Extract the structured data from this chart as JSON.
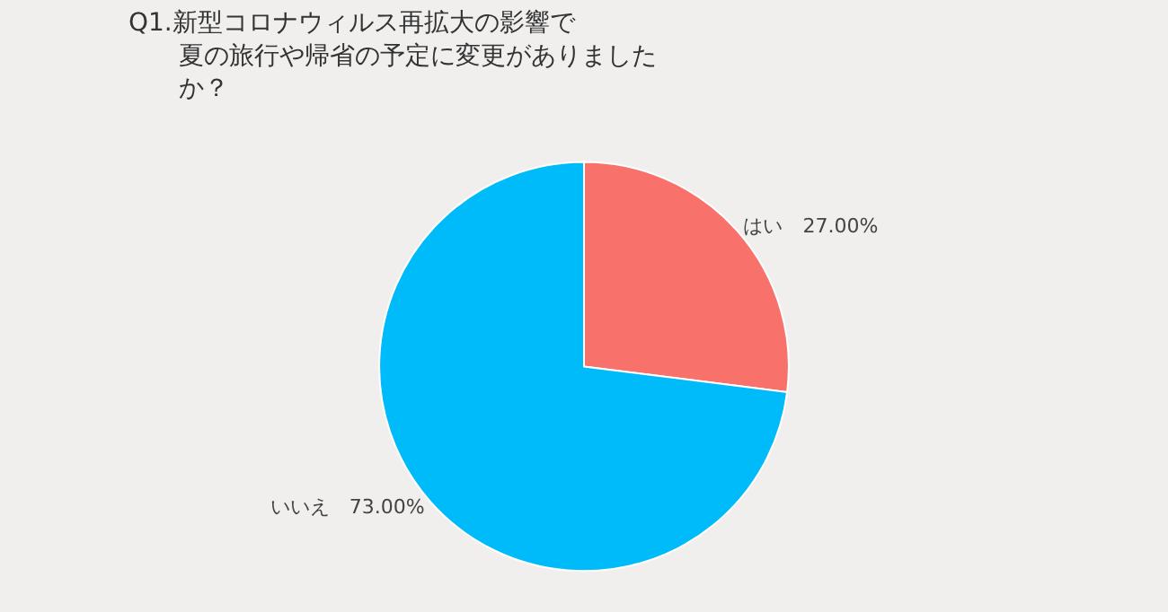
{
  "chart_data": {
    "type": "pie",
    "title": "Q1.新型コロナウィルス再拡大の影響で夏の旅行や帰省の予定に変更がありましたか？",
    "categories": [
      "はい",
      "いいえ"
    ],
    "values": [
      27,
      73
    ],
    "value_labels": [
      "27.00%",
      "73.00%"
    ],
    "colors": [
      "#f8716a",
      "#00bbf9"
    ],
    "legend": false
  }
}
